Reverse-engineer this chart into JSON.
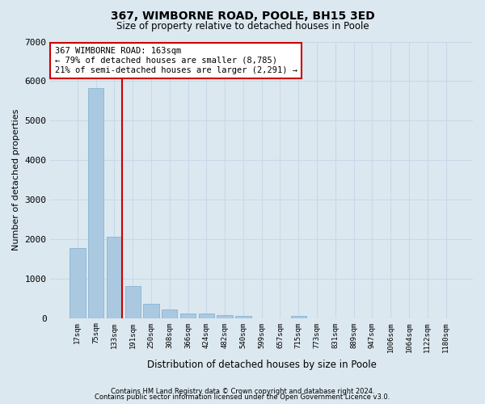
{
  "title1": "367, WIMBORNE ROAD, POOLE, BH15 3ED",
  "title2": "Size of property relative to detached houses in Poole",
  "xlabel": "Distribution of detached houses by size in Poole",
  "ylabel": "Number of detached properties",
  "bar_labels": [
    "17sqm",
    "75sqm",
    "133sqm",
    "191sqm",
    "250sqm",
    "308sqm",
    "366sqm",
    "424sqm",
    "482sqm",
    "540sqm",
    "599sqm",
    "657sqm",
    "715sqm",
    "773sqm",
    "831sqm",
    "889sqm",
    "947sqm",
    "1006sqm",
    "1064sqm",
    "1122sqm",
    "1180sqm"
  ],
  "bar_values": [
    1780,
    5820,
    2060,
    820,
    370,
    220,
    110,
    110,
    70,
    50,
    0,
    0,
    50,
    0,
    0,
    0,
    0,
    0,
    0,
    0,
    0
  ],
  "bar_color": "#aac8e0",
  "bar_edge_color": "#7aafcf",
  "marker_label_line1": "367 WIMBORNE ROAD: 163sqm",
  "marker_label_line2": "← 79% of detached houses are smaller (8,785)",
  "marker_label_line3": "21% of semi-detached houses are larger (2,291) →",
  "vline_color": "#cc0000",
  "ylim": [
    0,
    7000
  ],
  "yticks": [
    0,
    1000,
    2000,
    3000,
    4000,
    5000,
    6000,
    7000
  ],
  "grid_color": "#c8d8e8",
  "bg_color": "#dce8f0",
  "footer1": "Contains HM Land Registry data © Crown copyright and database right 2024.",
  "footer2": "Contains public sector information licensed under the Open Government Licence v3.0."
}
